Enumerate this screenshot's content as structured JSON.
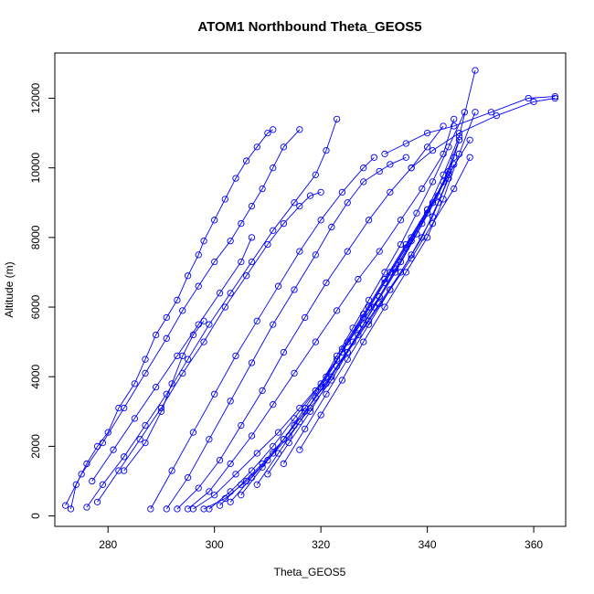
{
  "chart_data": {
    "type": "scatter",
    "title": "ATOM1 Northbound Theta_GEOS5",
    "xlabel": "Theta_GEOS5",
    "ylabel": "Altitude (m)",
    "xlim": [
      270,
      366
    ],
    "ylim": [
      -300,
      13300
    ],
    "x_ticks": [
      280,
      300,
      320,
      340,
      360
    ],
    "y_ticks": [
      0,
      2000,
      4000,
      6000,
      8000,
      10000,
      12000
    ],
    "grid": false,
    "legend": "none",
    "marker": "open-circle",
    "line_style": "solid",
    "color": "#0000ff",
    "series": [
      {
        "x": [
          273,
          274,
          276,
          278,
          280,
          282,
          285,
          287,
          289,
          291,
          293,
          295,
          297,
          298,
          300,
          302,
          304,
          306,
          308,
          310,
          311
        ],
        "y": [
          200,
          900,
          1500,
          2000,
          2400,
          3100,
          3800,
          4500,
          5200,
          5700,
          6200,
          6900,
          7500,
          7900,
          8500,
          9100,
          9700,
          10200,
          10600,
          11000,
          11100
        ]
      },
      {
        "x": [
          272,
          275,
          279,
          283,
          287,
          291,
          294,
          297,
          300,
          303,
          305,
          307,
          309,
          311,
          313,
          316
        ],
        "y": [
          300,
          1200,
          2100,
          3100,
          4100,
          5100,
          5900,
          6600,
          7300,
          7900,
          8400,
          8900,
          9400,
          10000,
          10600,
          11100
        ]
      },
      {
        "x": [
          276,
          279,
          283,
          287,
          291,
          295,
          299,
          303,
          307,
          311,
          315,
          319,
          321,
          323
        ],
        "y": [
          250,
          900,
          1700,
          2600,
          3500,
          4500,
          5500,
          6400,
          7300,
          8200,
          9000,
          9800,
          10500,
          11400
        ]
      },
      {
        "x": [
          278,
          282,
          286,
          290,
          294,
          298,
          302,
          306,
          310,
          313,
          316,
          318,
          320
        ],
        "y": [
          400,
          1300,
          2200,
          3100,
          4100,
          5000,
          6000,
          6900,
          7800,
          8400,
          8900,
          9200,
          9300
        ]
      },
      {
        "x": [
          288,
          292,
          296,
          300,
          304,
          308,
          312,
          316,
          320,
          324,
          328,
          330
        ],
        "y": [
          200,
          1300,
          2400,
          3500,
          4600,
          5600,
          6600,
          7600,
          8500,
          9300,
          10000,
          10300
        ]
      },
      {
        "x": [
          291,
          295,
          299,
          303,
          307,
          311,
          315,
          319,
          322,
          325,
          328,
          331,
          333,
          336
        ],
        "y": [
          200,
          1100,
          2200,
          3300,
          4400,
          5500,
          6500,
          7500,
          8300,
          9000,
          9600,
          9900,
          10100,
          10300
        ]
      },
      {
        "x": [
          293,
          297,
          301,
          305,
          309,
          313,
          317,
          321,
          325,
          329,
          333,
          337,
          340,
          343
        ],
        "y": [
          200,
          800,
          1600,
          2600,
          3600,
          4700,
          5700,
          6700,
          7600,
          8500,
          9300,
          10000,
          10600,
          11200
        ]
      },
      {
        "x": [
          295,
          299,
          303,
          307,
          311,
          315,
          319,
          323,
          327,
          331,
          335,
          339,
          343,
          345
        ],
        "y": [
          200,
          700,
          1500,
          2300,
          3200,
          4100,
          5000,
          5900,
          6800,
          7600,
          8500,
          9400,
          10400,
          11400
        ]
      },
      {
        "x": [
          296,
          300,
          304,
          308,
          312,
          316,
          320,
          323,
          326,
          329,
          332,
          335,
          338,
          341,
          344,
          347
        ],
        "y": [
          200,
          600,
          1200,
          1800,
          2400,
          3100,
          3800,
          4600,
          5400,
          6200,
          7000,
          7800,
          8700,
          9600,
          10600,
          11600
        ]
      },
      {
        "x": [
          298,
          302,
          306,
          310,
          314,
          318,
          322,
          325,
          328,
          331,
          334,
          337,
          340,
          343,
          346,
          349
        ],
        "y": [
          200,
          500,
          1000,
          1600,
          2300,
          3100,
          3900,
          4700,
          5500,
          6300,
          7100,
          7900,
          8800,
          9800,
          10900,
          12800
        ]
      },
      {
        "x": [
          299,
          303,
          307,
          311,
          315,
          319,
          323,
          327,
          331,
          335,
          339,
          343,
          346
        ],
        "y": [
          200,
          700,
          1300,
          2000,
          2800,
          3600,
          4500,
          5400,
          6300,
          7300,
          8400,
          9600,
          10800
        ]
      },
      {
        "x": [
          301,
          305,
          309,
          313,
          317,
          321,
          325,
          329,
          333,
          337,
          341,
          345,
          348
        ],
        "y": [
          300,
          900,
          1500,
          2200,
          3000,
          3800,
          4700,
          5600,
          6500,
          7400,
          8400,
          9400,
          10300
        ]
      },
      {
        "x": [
          303,
          307,
          311,
          315,
          319,
          323,
          327,
          331,
          335,
          339,
          342,
          345
        ],
        "y": [
          400,
          1100,
          1800,
          2600,
          3400,
          4300,
          5200,
          6100,
          7000,
          8000,
          9000,
          10100
        ]
      },
      {
        "x": [
          305,
          309,
          313,
          317,
          321,
          325,
          329,
          333,
          337,
          341,
          344
        ],
        "y": [
          600,
          1400,
          2200,
          3100,
          4000,
          5000,
          6000,
          7000,
          8000,
          9000,
          9900
        ]
      },
      {
        "x": [
          308,
          312,
          316,
          320,
          324,
          328,
          332,
          336,
          340,
          344,
          346
        ],
        "y": [
          900,
          1800,
          2700,
          3700,
          4700,
          5700,
          6700,
          7700,
          8700,
          9800,
          10800
        ]
      },
      {
        "x": [
          310,
          314,
          318,
          322,
          326,
          330,
          334,
          338,
          342,
          345
        ],
        "y": [
          1200,
          2100,
          3000,
          4000,
          5000,
          6000,
          7000,
          8100,
          9200,
          10300
        ]
      },
      {
        "x": [
          313,
          317,
          321,
          325,
          329,
          333,
          337,
          341,
          344
        ],
        "y": [
          1500,
          2500,
          3500,
          4500,
          5500,
          6500,
          7500,
          8600,
          9700
        ]
      },
      {
        "x": [
          316,
          320,
          324,
          328,
          332,
          336,
          340,
          343,
          346,
          349
        ],
        "y": [
          1900,
          2900,
          3900,
          5000,
          6000,
          7000,
          8000,
          9100,
          10400,
          11600
        ]
      },
      {
        "x": [
          324,
          328,
          332,
          336,
          340,
          344,
          348
        ],
        "y": [
          4800,
          5800,
          6800,
          7800,
          8800,
          9800,
          10800
        ]
      },
      {
        "x": [
          332,
          336,
          340,
          345,
          352,
          359,
          364
        ],
        "y": [
          10400,
          10700,
          11000,
          11200,
          11600,
          12000,
          12050
        ]
      },
      {
        "x": [
          337,
          341,
          346,
          353,
          360,
          364
        ],
        "y": [
          10000,
          10500,
          11000,
          11500,
          11900,
          12000
        ]
      },
      {
        "x": [
          283,
          287,
          290,
          292,
          294,
          296,
          298
        ],
        "y": [
          1300,
          2100,
          3000,
          3800,
          4600,
          5200,
          5600
        ]
      },
      {
        "x": [
          277,
          281,
          285,
          289,
          293,
          297,
          301,
          305,
          307
        ],
        "y": [
          1000,
          1900,
          2800,
          3700,
          4600,
          5500,
          6400,
          7300,
          8000
        ]
      }
    ]
  }
}
